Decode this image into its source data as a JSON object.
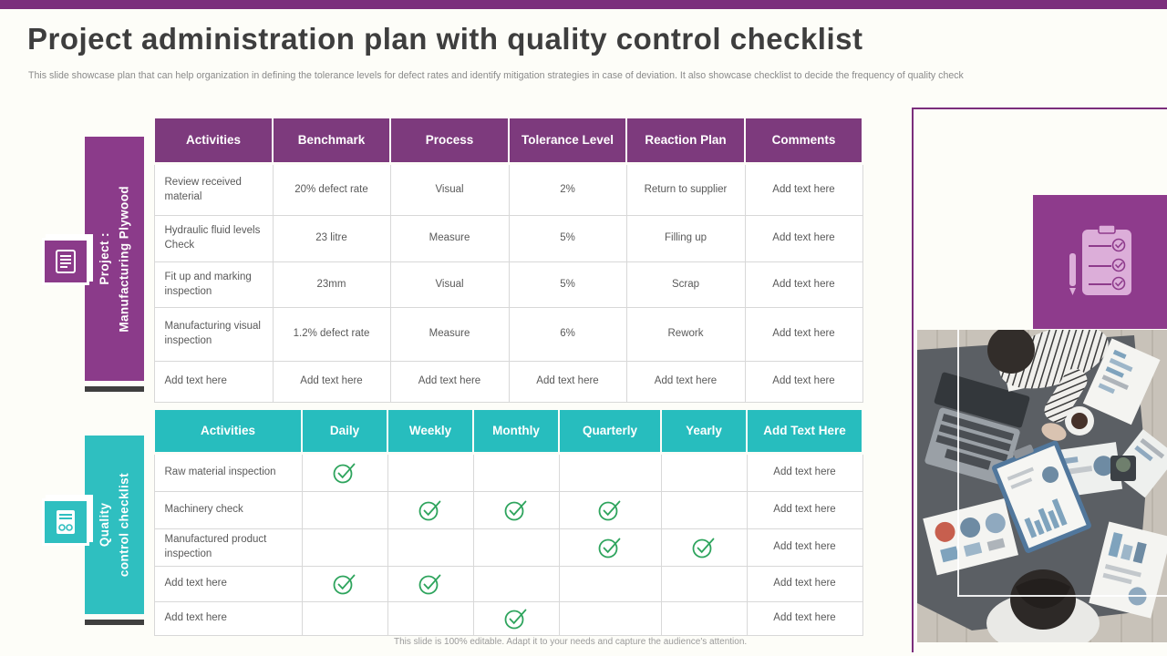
{
  "slide": {
    "title": "Project administration plan with quality control checklist",
    "subtitle": "This slide showcase plan that can help organization in defining the tolerance levels for defect rates and identify mitigation strategies in case of deviation. It also showcase checklist to decide the frequency of quality check",
    "footer": "This slide is 100% editable. Adapt it to your needs and capture the audience's attention."
  },
  "colors": {
    "accent_purple": "#7B2E7C",
    "table1_header_purple": "#7D3A7D",
    "rail_purple": "#8B3B8A",
    "icon_box_purple": "#8E3B8C",
    "accent_teal": "#2FBFC0",
    "table2_header_teal": "#27BDBE",
    "check_green": "#2EA45D"
  },
  "rail_project": {
    "line1": "Project :",
    "line2": "Manufacturing Plywood"
  },
  "rail_quality": {
    "line1": "Quality",
    "line2": "control checklist"
  },
  "table1": {
    "headers": [
      "Activities",
      "Benchmark",
      "Process",
      "Tolerance Level",
      "Reaction Plan",
      "Comments"
    ],
    "rows": [
      [
        "Review received material",
        "20% defect rate",
        "Visual",
        "2%",
        "Return to supplier",
        "Add text here"
      ],
      [
        "Hydraulic fluid levels Check",
        "23 litre",
        "Measure",
        "5%",
        "Filling up",
        "Add text here"
      ],
      [
        "Fit up and marking inspection",
        "23mm",
        "Visual",
        "5%",
        "Scrap",
        "Add text here"
      ],
      [
        "Manufacturing visual inspection",
        "1.2% defect rate",
        "Measure",
        "6%",
        "Rework",
        "Add text here"
      ],
      [
        "Add text here",
        "Add text here",
        "Add text here",
        "Add text here",
        "Add text here",
        "Add text here"
      ]
    ]
  },
  "table2": {
    "headers": [
      "Activities",
      "Daily",
      "Weekly",
      "Monthly",
      "Quarterly",
      "Yearly",
      "Add Text Here"
    ],
    "rows": [
      {
        "activity": "Raw material inspection",
        "checks": [
          true,
          false,
          false,
          false,
          false
        ],
        "comment": "Add text here"
      },
      {
        "activity": "Machinery check",
        "checks": [
          false,
          true,
          true,
          true,
          false
        ],
        "comment": "Add text here"
      },
      {
        "activity": "Manufactured product inspection",
        "checks": [
          false,
          false,
          false,
          true,
          true
        ],
        "comment": "Add text here"
      },
      {
        "activity": "Add text here",
        "checks": [
          true,
          true,
          false,
          false,
          false
        ],
        "comment": "Add text here"
      },
      {
        "activity": "Add text here",
        "checks": [
          false,
          false,
          true,
          false,
          false
        ],
        "comment": "Add text here"
      }
    ]
  }
}
